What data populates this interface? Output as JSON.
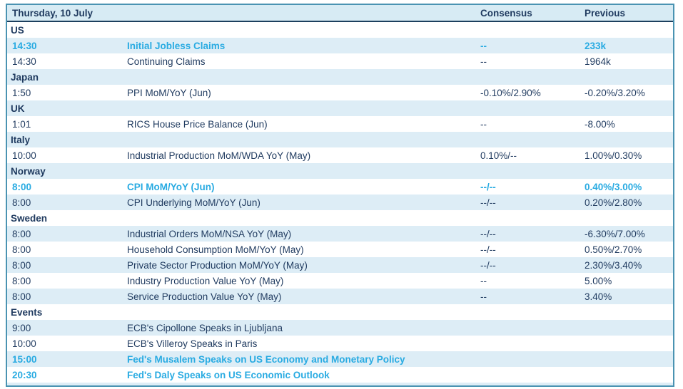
{
  "colors": {
    "border": "#4a93b2",
    "header_line": "#1c3f5e",
    "header_bg": "#d7ebf4",
    "stripe_bg": "#ddedf6",
    "text_navy": "#1f3a5f",
    "highlight_cyan": "#29abe2"
  },
  "table": {
    "header": {
      "date_label": "Thursday, 10 July",
      "consensus_label": "Consensus",
      "previous_label": "Previous"
    },
    "rows": [
      {
        "type": "section",
        "label": "US"
      },
      {
        "type": "event",
        "time": "14:30",
        "event": "Initial Jobless Claims",
        "consensus": "--",
        "previous": "233k",
        "highlight": true
      },
      {
        "type": "event",
        "time": "14:30",
        "event": "Continuing Claims",
        "consensus": "--",
        "previous": "1964k",
        "highlight": false
      },
      {
        "type": "section",
        "label": "Japan"
      },
      {
        "type": "event",
        "time": "1:50",
        "event": "PPI MoM/YoY (Jun)",
        "consensus": "-0.10%/2.90%",
        "previous": "-0.20%/3.20%",
        "highlight": false
      },
      {
        "type": "section",
        "label": "UK"
      },
      {
        "type": "event",
        "time": "1:01",
        "event": "RICS House Price Balance (Jun)",
        "consensus": "--",
        "previous": "-8.00%",
        "highlight": false
      },
      {
        "type": "section",
        "label": "Italy"
      },
      {
        "type": "event",
        "time": "10:00",
        "event": "Industrial Production MoM/WDA YoY (May)",
        "consensus": "0.10%/--",
        "previous": "1.00%/0.30%",
        "highlight": false
      },
      {
        "type": "section",
        "label": "Norway"
      },
      {
        "type": "event",
        "time": "8:00",
        "event": "CPI MoM/YoY (Jun)",
        "consensus": "--/--",
        "previous": "0.40%/3.00%",
        "highlight": true
      },
      {
        "type": "event",
        "time": "8:00",
        "event": "CPI Underlying MoM/YoY (Jun)",
        "consensus": "--/--",
        "previous": "0.20%/2.80%",
        "highlight": false
      },
      {
        "type": "section",
        "label": "Sweden"
      },
      {
        "type": "event",
        "time": "8:00",
        "event": "Industrial Orders MoM/NSA YoY (May)",
        "consensus": "--/--",
        "previous": "-6.30%/7.00%",
        "highlight": false
      },
      {
        "type": "event",
        "time": "8:00",
        "event": "Household Consumption MoM/YoY (May)",
        "consensus": "--/--",
        "previous": "0.50%/2.70%",
        "highlight": false
      },
      {
        "type": "event",
        "time": "8:00",
        "event": "Private Sector Production MoM/YoY (May)",
        "consensus": "--/--",
        "previous": "2.30%/3.40%",
        "highlight": false
      },
      {
        "type": "event",
        "time": "8:00",
        "event": "Industry Production Value YoY (May)",
        "consensus": "--",
        "previous": "5.00%",
        "highlight": false
      },
      {
        "type": "event",
        "time": "8:00",
        "event": "Service Production Value YoY (May)",
        "consensus": "--",
        "previous": "3.40%",
        "highlight": false
      },
      {
        "type": "section",
        "label": "Events"
      },
      {
        "type": "event",
        "time": "9:00",
        "event": "ECB's Cipollone Speaks in Ljubljana",
        "consensus": "",
        "previous": "",
        "highlight": false
      },
      {
        "type": "event",
        "time": "10:00",
        "event": "ECB's Villeroy Speaks in Paris",
        "consensus": "",
        "previous": "",
        "highlight": false
      },
      {
        "type": "event",
        "time": "15:00",
        "event": "Fed's Musalem Speaks on US Economy and Monetary Policy",
        "consensus": "",
        "previous": "",
        "highlight": true
      },
      {
        "type": "event",
        "time": "20:30",
        "event": "Fed's Daly Speaks on US Economic Outlook",
        "consensus": "",
        "previous": "",
        "highlight": true
      }
    ]
  }
}
